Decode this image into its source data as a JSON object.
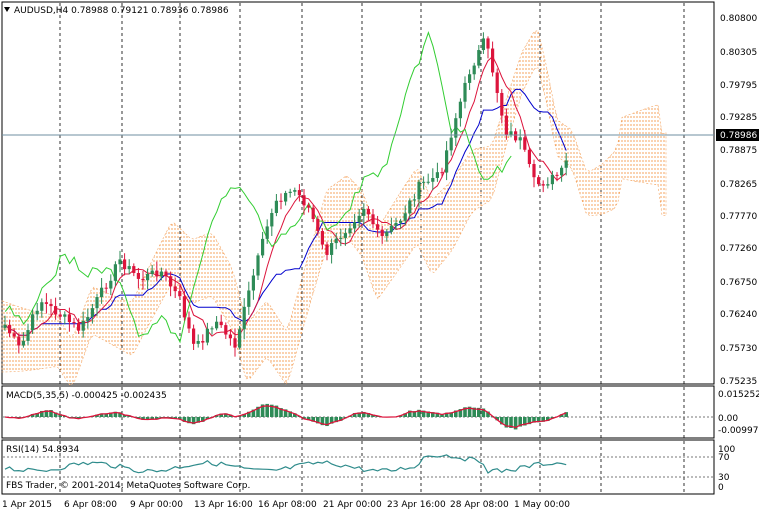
{
  "main_panel": {
    "header": "AUDUSD,H4  0.78988 0.79121 0.78936 0.78986",
    "price_ticks": [
      "0.80800",
      "0.80305",
      "0.79795",
      "0.79285",
      "0.78875",
      "0.78265",
      "0.77770",
      "0.77260",
      "0.76750",
      "0.76240",
      "0.75730",
      "0.75235"
    ],
    "current_price_label": "0.78986"
  },
  "macd_panel": {
    "header": "MACD(5,35,5) -0.000425 -0.002435",
    "ticks": [
      "0.015252",
      "0.00",
      "-0.009971"
    ]
  },
  "rsi_panel": {
    "header": "RSI(14) 54.8934",
    "ticks": [
      "100",
      "70",
      "30",
      "0"
    ]
  },
  "watermark": "FBS Trader, © 2001-2014, MetaQuotes Software Corp.",
  "time_ticks": [
    "1 Apr 2015",
    "6 Apr 08:00",
    "9 Apr 00:00",
    "13 Apr 16:00",
    "16 Apr 08:00",
    "21 Apr 00:00",
    "23 Apr 16:00",
    "28 Apr 08:00",
    "1 May 00:00"
  ],
  "colors": {
    "bull_candle": "#2e8b57",
    "bear_candle": "#dc143c",
    "tenkan": "#dc143c",
    "kijun": "#0000cd",
    "chikou": "#32cd32",
    "cloud_bull": "#f4a460",
    "cloud_bear": "#dda0dd",
    "macd_hist": "#2e8b57",
    "macd_signal": "#dc143c",
    "rsi_line": "#2e8b8b"
  }
}
